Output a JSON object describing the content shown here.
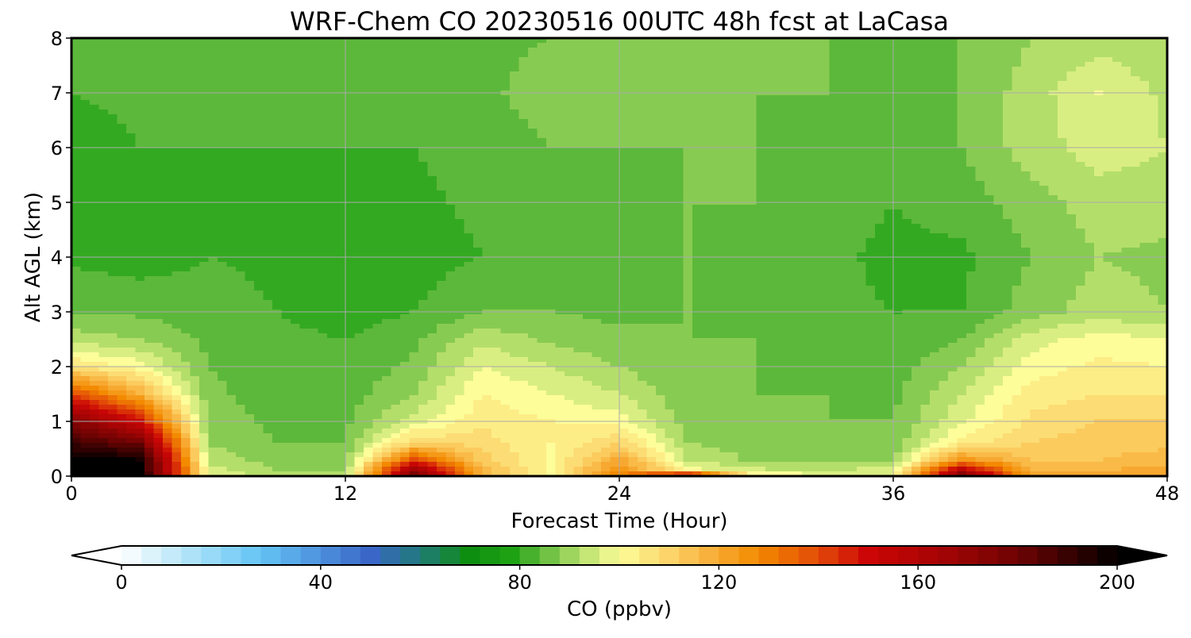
{
  "chart_data": {
    "type": "heatmap",
    "title": "WRF-Chem CO  20230516 00UTC 48h fcst at LaCasa",
    "xlabel": "Forecast Time (Hour)",
    "ylabel": "Alt AGL (km)",
    "xlim": [
      0,
      48
    ],
    "ylim": [
      0,
      8
    ],
    "x_ticks": [
      0,
      12,
      24,
      36,
      48
    ],
    "x_tick_labels": [
      "0",
      "12",
      "24",
      "36",
      "48"
    ],
    "y_ticks": [
      0,
      1,
      2,
      3,
      4,
      5,
      6,
      7,
      8
    ],
    "y_tick_labels": [
      "0",
      "1",
      "2",
      "3",
      "4",
      "5",
      "6",
      "7",
      "8"
    ],
    "grid": true,
    "colorbar": {
      "label": "CO  (ppbv)",
      "min": 0,
      "max": 200,
      "ticks": [
        0,
        40,
        80,
        120,
        160,
        200
      ],
      "tick_labels": [
        "0",
        "40",
        "80",
        "120",
        "160",
        "200"
      ],
      "extend": "both",
      "colors": [
        {
          "v": 0,
          "c": "#ffffff"
        },
        {
          "v": 15,
          "c": "#a8e0f8"
        },
        {
          "v": 28,
          "c": "#64c4f4"
        },
        {
          "v": 50,
          "c": "#3a66c8"
        },
        {
          "v": 60,
          "c": "#207a78"
        },
        {
          "v": 70,
          "c": "#0e8e10"
        },
        {
          "v": 78,
          "c": "#1ea214"
        },
        {
          "v": 84,
          "c": "#5cb83a"
        },
        {
          "v": 92,
          "c": "#b4de6a"
        },
        {
          "v": 100,
          "c": "#fdfd9a"
        },
        {
          "v": 110,
          "c": "#fcd46a"
        },
        {
          "v": 120,
          "c": "#f7a830"
        },
        {
          "v": 128,
          "c": "#f38a00"
        },
        {
          "v": 140,
          "c": "#e24a08"
        },
        {
          "v": 150,
          "c": "#cc0606"
        },
        {
          "v": 165,
          "c": "#a40404"
        },
        {
          "v": 180,
          "c": "#6e0303"
        },
        {
          "v": 195,
          "c": "#1e0101"
        },
        {
          "v": 200,
          "c": "#000000"
        }
      ]
    },
    "grid_values": {
      "description_x": "forecast hour",
      "x": [
        0,
        3,
        6,
        9,
        12,
        15,
        18,
        21,
        24,
        27,
        30,
        33,
        36,
        39,
        42,
        45,
        48
      ],
      "z": [
        0,
        0.1,
        0.3,
        0.6,
        1,
        1.5,
        2,
        2.5,
        3,
        4,
        5,
        6,
        7,
        8
      ],
      "values": [
        [
          200,
          200,
          98,
          92,
          90,
          180,
          118,
          100,
          130,
          170,
          102,
          100,
          98,
          180,
          120,
          120,
          122
        ],
        [
          200,
          200,
          96,
          90,
          90,
          170,
          116,
          100,
          128,
          100,
          95,
          94,
          96,
          160,
          118,
          118,
          120
        ],
        [
          200,
          198,
          92,
          88,
          88,
          140,
          112,
          101,
          120,
          94,
          89,
          88,
          90,
          125,
          114,
          114,
          116
        ],
        [
          190,
          180,
          90,
          86,
          86,
          110,
          108,
          102,
          110,
          90,
          88,
          87,
          87,
          104,
          110,
          112,
          113
        ],
        [
          175,
          150,
          88,
          85,
          85,
          96,
          105,
          102,
          100,
          88,
          87,
          86,
          86,
          97,
          107,
          110,
          110
        ],
        [
          140,
          118,
          87,
          84,
          84,
          90,
          102,
          98,
          94,
          87,
          86,
          86,
          85,
          94,
          104,
          106,
          106
        ],
        [
          106,
          100,
          86,
          84,
          83,
          87,
          98,
          94,
          90,
          86,
          86,
          85,
          84,
          90,
          100,
          103,
          102
        ],
        [
          92,
          90,
          85,
          83,
          82,
          85,
          93,
          89,
          87,
          86,
          86,
          84,
          83,
          86,
          96,
          100,
          98
        ],
        [
          86,
          85,
          84,
          82,
          80,
          82,
          86,
          86,
          85,
          86,
          85,
          83,
          82,
          82,
          88,
          92,
          90
        ],
        [
          81,
          80,
          82,
          81,
          80,
          80,
          82,
          84,
          84,
          86,
          85,
          83,
          81,
          81,
          86,
          90,
          89
        ],
        [
          79,
          80,
          81,
          81,
          80,
          81,
          83,
          84,
          85,
          86,
          86,
          84,
          82,
          84,
          88,
          92,
          92
        ],
        [
          80,
          82,
          82,
          82,
          82,
          82,
          84,
          86,
          86,
          86,
          86,
          85,
          83,
          86,
          92,
          96,
          94
        ],
        [
          82,
          83,
          83,
          83,
          84,
          84,
          85,
          88,
          86,
          86,
          86,
          86,
          84,
          86,
          92,
          98,
          93
        ],
        [
          84,
          85,
          84,
          84,
          84,
          85,
          85,
          86,
          86,
          86,
          86,
          86,
          85,
          86,
          90,
          92,
          91
        ]
      ]
    }
  }
}
